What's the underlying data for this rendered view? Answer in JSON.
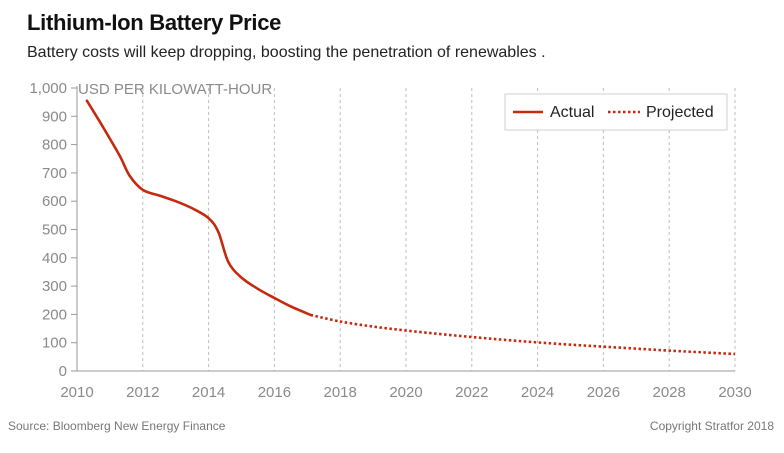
{
  "chart_data": {
    "type": "line",
    "title": "Lithium-Ion Battery Price",
    "subtitle": "Battery costs will keep dropping, boosting the penetration of renewables .",
    "ylabel": "USD PER KILOWATT-HOUR",
    "xlabel": "",
    "xlim": [
      2010,
      2030
    ],
    "ylim": [
      0,
      1000
    ],
    "x_ticks": [
      2010,
      2012,
      2014,
      2016,
      2018,
      2020,
      2022,
      2024,
      2026,
      2028,
      2030
    ],
    "x_tick_labels": [
      "2010",
      "2012",
      "2014",
      "2016",
      "2018",
      "2020",
      "2022",
      "2024",
      "2026",
      "2028",
      "2030"
    ],
    "y_ticks": [
      0,
      100,
      200,
      300,
      400,
      500,
      600,
      700,
      800,
      900,
      1000
    ],
    "y_tick_labels": [
      "0",
      "100",
      "200",
      "300",
      "400",
      "500",
      "600",
      "700",
      "800",
      "900",
      "1,000"
    ],
    "grid": "vertical dashed",
    "legend_position": "top-right",
    "series": [
      {
        "name": "Actual",
        "style": "solid",
        "color": "#c52a0e",
        "x": [
          2010.3,
          2010.8,
          2011.3,
          2011.6,
          2012.0,
          2012.5,
          2013.0,
          2013.5,
          2014.0,
          2014.3,
          2014.6,
          2015.0,
          2015.5,
          2016.0,
          2016.5,
          2017.1
        ],
        "y": [
          955,
          860,
          760,
          690,
          640,
          620,
          600,
          575,
          540,
          490,
          385,
          330,
          290,
          258,
          228,
          198
        ]
      },
      {
        "name": "Projected",
        "style": "dotted",
        "color": "#c52a0e",
        "x": [
          2017.1,
          2018,
          2019,
          2020,
          2021,
          2022,
          2023,
          2024,
          2025,
          2026,
          2027,
          2028,
          2029,
          2030
        ],
        "y": [
          198,
          175,
          157,
          143,
          131,
          120,
          110,
          101,
          93,
          86,
          79,
          72,
          66,
          60
        ]
      }
    ],
    "source": "Source: Bloomberg New Energy Finance",
    "copyright": "Copyright Stratfor 2018"
  }
}
